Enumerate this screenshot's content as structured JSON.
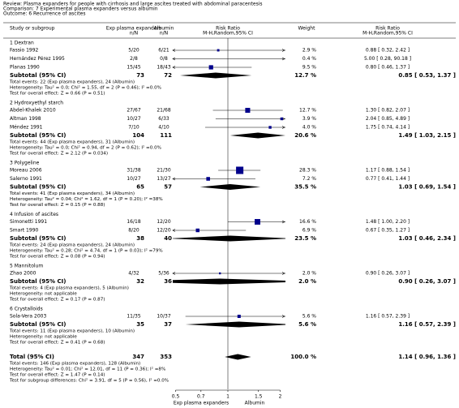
{
  "header": {
    "review": "Review:   Plasma expanders for people with cirrhosis and large ascites treated with abdominal paracentesis",
    "comparison": "Comparison:   7 Experimental plasma expanders versus albumin",
    "outcome": "Outcome:   6 Recurrence of ascites"
  },
  "columns": {
    "study": "Study or subgroup",
    "exp": "Exp plasma expanders",
    "exp_unit": "n/N",
    "alb": "Albumin",
    "alb_unit": "n/N",
    "plot": "Risk Ratio",
    "plot_sub": "M-H,Random,95% CI",
    "weight": "Weight",
    "rr": "Risk Ratio",
    "rr_sub": "M-H,Random,95% CI"
  },
  "groups": [
    {
      "title": "1 Dextran",
      "studies": [
        {
          "name": "Fassio 1992",
          "exp": "5/20",
          "alb": "6/21",
          "weight": {
            "value": 2.9,
            "label": "2.9 %"
          },
          "rr": 0.88,
          "lo": 0.32,
          "hi": 2.42,
          "ci_label": "0.88 [ 0.32, 2.42 ]"
        },
        {
          "name": "Hernández Pérez 1995",
          "exp": "2/8",
          "alb": "0/8",
          "weight": {
            "value": 0.4,
            "label": "0.4 %"
          },
          "rr": 5.0,
          "lo": 0.28,
          "hi": 90.18,
          "ci_label": "5.00 [ 0.28, 90.18 ]"
        },
        {
          "name": "Planas 1990",
          "exp": "15/45",
          "alb": "18/43",
          "weight": {
            "value": 9.5,
            "label": "9.5 %"
          },
          "rr": 0.8,
          "lo": 0.46,
          "hi": 1.37,
          "ci_label": "0.80 [ 0.46, 1.37 ]"
        }
      ],
      "subtotal": {
        "label": "Subtotal (95% CI)",
        "exp": 73,
        "alb": 72,
        "weight": "12.7 %",
        "rr": 0.85,
        "lo": 0.53,
        "hi": 1.37,
        "ci_label": "0.85 [ 0.53, 1.37 ]"
      },
      "notes": [
        "Total events: 22 (Exp plasma expanders), 24 (Albumin)",
        "Heterogeneity: Tau² = 0.0; Chi² = 1.55, df = 2 (P = 0.46); I² =0.0%",
        "Test for overall effect: Z = 0.66 (P = 0.51)"
      ]
    },
    {
      "title": "2 Hydroxyethyl starch",
      "studies": [
        {
          "name": "Abdel-Khalek 2010",
          "exp": "27/67",
          "alb": "21/68",
          "weight": {
            "value": 12.7,
            "label": "12.7 %"
          },
          "rr": 1.3,
          "lo": 0.82,
          "hi": 2.07,
          "ci_label": "1.30 [ 0.82, 2.07 ]"
        },
        {
          "name": "Altman 1998",
          "exp": "10/27",
          "alb": "6/33",
          "weight": {
            "value": 3.9,
            "label": "3.9 %"
          },
          "rr": 2.04,
          "lo": 0.85,
          "hi": 4.89,
          "ci_label": "2.04 [ 0.85, 4.89 ]"
        },
        {
          "name": "Méndez 1991",
          "exp": "7/10",
          "alb": "4/10",
          "weight": {
            "value": 4.0,
            "label": "4.0 %"
          },
          "rr": 1.75,
          "lo": 0.74,
          "hi": 4.14,
          "ci_label": "1.75 [ 0.74, 4.14 ]"
        }
      ],
      "subtotal": {
        "label": "Subtotal (95% CI)",
        "exp": 104,
        "alb": 111,
        "weight": "20.6 %",
        "rr": 1.49,
        "lo": 1.03,
        "hi": 2.15,
        "ci_label": "1.49 [ 1.03, 2.15 ]"
      },
      "notes": [
        "Total events: 44 (Exp plasma expanders), 31 (Albumin)",
        "Heterogeneity: Tau² = 0.0; Chi² = 0.94, df = 2 (P = 0.62); I² =0.0%",
        "Test for overall effect: Z = 2.12 (P = 0.034)"
      ]
    },
    {
      "title": "3 Polygeline",
      "studies": [
        {
          "name": "Moreau 2006",
          "exp": "31/38",
          "alb": "21/30",
          "weight": {
            "value": 28.3,
            "label": "28.3 %"
          },
          "rr": 1.17,
          "lo": 0.88,
          "hi": 1.54,
          "ci_label": "1.17 [ 0.88, 1.54 ]"
        },
        {
          "name": "Salerno 1991",
          "exp": "10/27",
          "alb": "13/27",
          "weight": {
            "value": 7.2,
            "label": "7.2 %"
          },
          "rr": 0.77,
          "lo": 0.41,
          "hi": 1.44,
          "ci_label": "0.77 [ 0.41, 1.44 ]"
        }
      ],
      "subtotal": {
        "label": "Subtotal (95% CI)",
        "exp": 65,
        "alb": 57,
        "weight": "35.5 %",
        "rr": 1.03,
        "lo": 0.69,
        "hi": 1.54,
        "ci_label": "1.03 [ 0.69, 1.54 ]"
      },
      "notes": [
        "Total events: 41 (Exp plasma expanders), 34 (Albumin)",
        "Heterogeneity: Tau² = 0.04; Chi² = 1.62, df = 1 (P = 0.20); I² =38%",
        "Test for overall effect: Z = 0.15 (P = 0.88)"
      ]
    },
    {
      "title": "4 Infusion of ascites",
      "studies": [
        {
          "name": "Simonetti 1991",
          "exp": "16/18",
          "alb": "12/20",
          "weight": {
            "value": 16.6,
            "label": "16.6 %"
          },
          "rr": 1.48,
          "lo": 1.0,
          "hi": 2.2,
          "ci_label": "1.48 [ 1.00, 2.20 ]"
        },
        {
          "name": "Smart 1990",
          "exp": "8/20",
          "alb": "12/20",
          "weight": {
            "value": 6.9,
            "label": "6.9 %"
          },
          "rr": 0.67,
          "lo": 0.35,
          "hi": 1.27,
          "ci_label": "0.67 [ 0.35, 1.27 ]"
        }
      ],
      "subtotal": {
        "label": "Subtotal (95% CI)",
        "exp": 38,
        "alb": 40,
        "weight": "23.5 %",
        "rr": 1.03,
        "lo": 0.46,
        "hi": 2.34,
        "ci_label": "1.03 [ 0.46, 2.34 ]"
      },
      "notes": [
        "Total events: 24 (Exp plasma expanders), 24 (Albumin)",
        "Heterogeneity: Tau² = 0.28; Chi² = 4.74, df = 1 (P = 0.03); I² =79%",
        "Test for overall effect: Z = 0.08 (P = 0.94)"
      ]
    },
    {
      "title": "5 Mannitolum",
      "studies": [
        {
          "name": "Zhao 2000",
          "exp": "4/32",
          "alb": "5/36",
          "weight": {
            "value": 2.0,
            "label": "2.0 %"
          },
          "rr": 0.9,
          "lo": 0.26,
          "hi": 3.07,
          "ci_label": "0.90 [ 0.26, 3.07 ]"
        }
      ],
      "subtotal": {
        "label": "Subtotal (95% CI)",
        "exp": 32,
        "alb": 36,
        "weight": "2.0 %",
        "rr": 0.9,
        "lo": 0.26,
        "hi": 3.07,
        "ci_label": "0.90 [ 0.26, 3.07 ]"
      },
      "notes": [
        "Total events: 4 (Exp plasma expanders), 5 (Albumin)",
        "Heterogeneity: not applicable",
        "Test for overall effect: Z = 0.17 (P = 0.87)"
      ]
    },
    {
      "title": "6 Crystalloids",
      "studies": [
        {
          "name": "Sola-Vera 2003",
          "exp": "11/35",
          "alb": "10/37",
          "weight": {
            "value": 5.6,
            "label": "5.6 %"
          },
          "rr": 1.16,
          "lo": 0.57,
          "hi": 2.39,
          "ci_label": "1.16 [ 0.57, 2.39 ]"
        }
      ],
      "subtotal": {
        "label": "Subtotal (95% CI)",
        "exp": 35,
        "alb": 37,
        "weight": "5.6 %",
        "rr": 1.16,
        "lo": 0.57,
        "hi": 2.39,
        "ci_label": "1.16 [ 0.57, 2.39 ]"
      },
      "notes": [
        "Total events: 11 (Exp plasma expanders), 10 (Albumin)",
        "Heterogeneity: not applicable",
        "Test for overall effect: Z = 0.41 (P = 0.68)"
      ]
    }
  ],
  "total": {
    "label": "Total (95% CI)",
    "exp": 347,
    "alb": 353,
    "weight": "100.0 %",
    "rr": 1.14,
    "lo": 0.96,
    "hi": 1.36,
    "ci_label": "1.14 [ 0.96, 1.36 ]",
    "notes": [
      "Total events: 146 (Exp plasma expanders), 128 (Albumin)",
      "Heterogeneity: Tau² = 0.01; Chi² = 12.01, df = 11 (P = 0.36); I² =8%",
      "Test for overall effect: Z = 1.47 (P = 0.14)",
      "Test for subgroup differences: Chi² = 3.91, df = 5 (P = 0.56), I² =0.0%"
    ]
  },
  "axis": {
    "ticks": [
      0.5,
      0.7,
      1,
      1.5,
      2
    ],
    "left_label": "Exp plasma expanders",
    "right_label": "Albumin"
  }
}
